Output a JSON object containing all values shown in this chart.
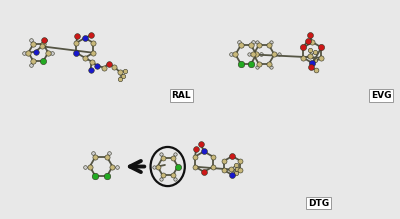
{
  "fig_width": 4.0,
  "fig_height": 2.19,
  "dpi": 100,
  "bg_color": "#e8e8e8",
  "panel_bg": "#ffffff",
  "border_color": "#aaaaaa",
  "labels": [
    "RAL",
    "EVG",
    "DTG"
  ],
  "panel_positions": {
    "RAL": [
      0.015,
      0.51,
      0.475,
      0.465
    ],
    "EVG": [
      0.515,
      0.51,
      0.475,
      0.465
    ],
    "DTG": [
      0.155,
      0.03,
      0.685,
      0.455
    ]
  },
  "label_font_size": 6.5,
  "atom_colors": {
    "C": "#c8b87a",
    "N": "#1818cc",
    "O": "#cc1818",
    "Cl": "#22aa22",
    "H": "#cccccc",
    "white": "#f5f5f5"
  },
  "bond_color": "#555544",
  "arrow_color": "#111111",
  "circle_color": "#111111",
  "label_box_color": "#ffffff",
  "label_box_edge": "#999999"
}
